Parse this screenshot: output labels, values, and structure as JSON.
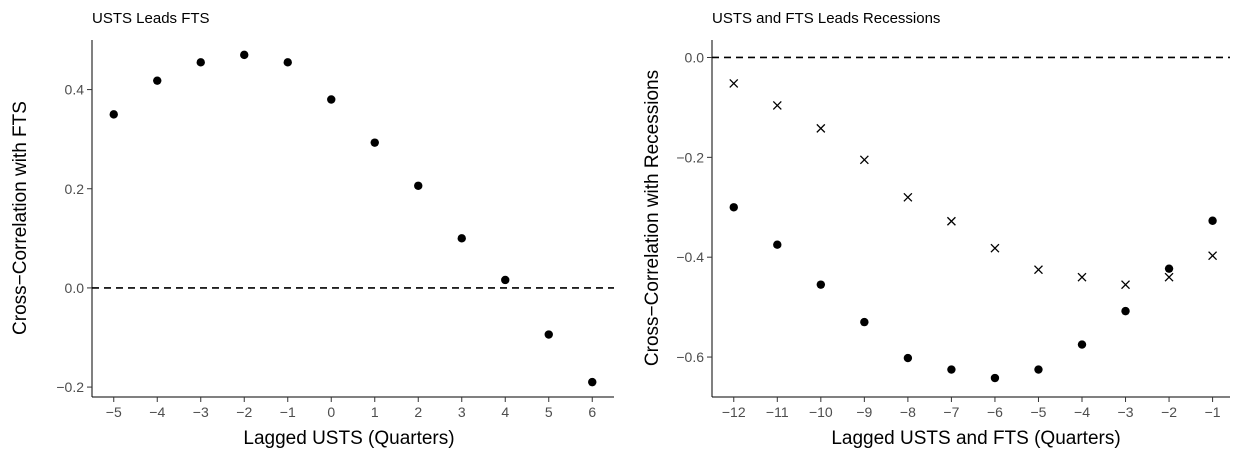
{
  "chart_data": [
    {
      "type": "scatter",
      "title": "USTS Leads FTS",
      "xlabel": "Lagged USTS (Quarters)",
      "ylabel": "Cross−Correlation with FTS",
      "xlim": [
        -5.5,
        6.5
      ],
      "ylim": [
        -0.22,
        0.5
      ],
      "xticks": [
        -5,
        -4,
        -3,
        -2,
        -1,
        0,
        1,
        2,
        3,
        4,
        5,
        6
      ],
      "xtick_labels": [
        "−5",
        "−4",
        "−3",
        "−2",
        "−1",
        "0",
        "1",
        "2",
        "3",
        "4",
        "5",
        "6"
      ],
      "yticks": [
        -0.2,
        0.0,
        0.2,
        0.4
      ],
      "ytick_labels": [
        "−0.2",
        "0.0",
        "0.2",
        "0.4"
      ],
      "reference_line_y": 0,
      "grid": false,
      "series": [
        {
          "marker": "circle",
          "x": [
            -5,
            -4,
            -3,
            -2,
            -1,
            0,
            1,
            2,
            3,
            4,
            5,
            6
          ],
          "y": [
            0.35,
            0.418,
            0.455,
            0.47,
            0.455,
            0.38,
            0.293,
            0.206,
            0.1,
            0.016,
            -0.094,
            -0.19
          ]
        }
      ]
    },
    {
      "type": "scatter",
      "title": "USTS and FTS Leads Recessions",
      "xlabel": "Lagged USTS and FTS (Quarters)",
      "ylabel": "Cross−Correlation with Recessions",
      "xlim": [
        -12.5,
        -0.6
      ],
      "ylim": [
        -0.68,
        0.035
      ],
      "xticks": [
        -12,
        -11,
        -10,
        -9,
        -8,
        -7,
        -6,
        -5,
        -4,
        -3,
        -2,
        -1
      ],
      "xtick_labels": [
        "−12",
        "−11",
        "−10",
        "−9",
        "−8",
        "−7",
        "−6",
        "−5",
        "−4",
        "−3",
        "−2",
        "−1"
      ],
      "yticks": [
        -0.6,
        -0.4,
        -0.2,
        0.0
      ],
      "ytick_labels": [
        "−0.6",
        "−0.4",
        "−0.2",
        "0.0"
      ],
      "reference_line_y": 0,
      "grid": false,
      "series": [
        {
          "marker": "circle",
          "x": [
            -12,
            -11,
            -10,
            -9,
            -8,
            -7,
            -6,
            -5,
            -4,
            -3,
            -2,
            -1
          ],
          "y": [
            -0.3,
            -0.375,
            -0.455,
            -0.53,
            -0.602,
            -0.625,
            -0.642,
            -0.625,
            -0.575,
            -0.508,
            -0.423,
            -0.327
          ]
        },
        {
          "marker": "cross",
          "x": [
            -12,
            -11,
            -10,
            -9,
            -8,
            -7,
            -6,
            -5,
            -4,
            -3,
            -2,
            -1
          ],
          "y": [
            -0.052,
            -0.096,
            -0.142,
            -0.205,
            -0.28,
            -0.328,
            -0.382,
            -0.425,
            -0.44,
            -0.455,
            -0.44,
            -0.397
          ]
        }
      ]
    }
  ]
}
